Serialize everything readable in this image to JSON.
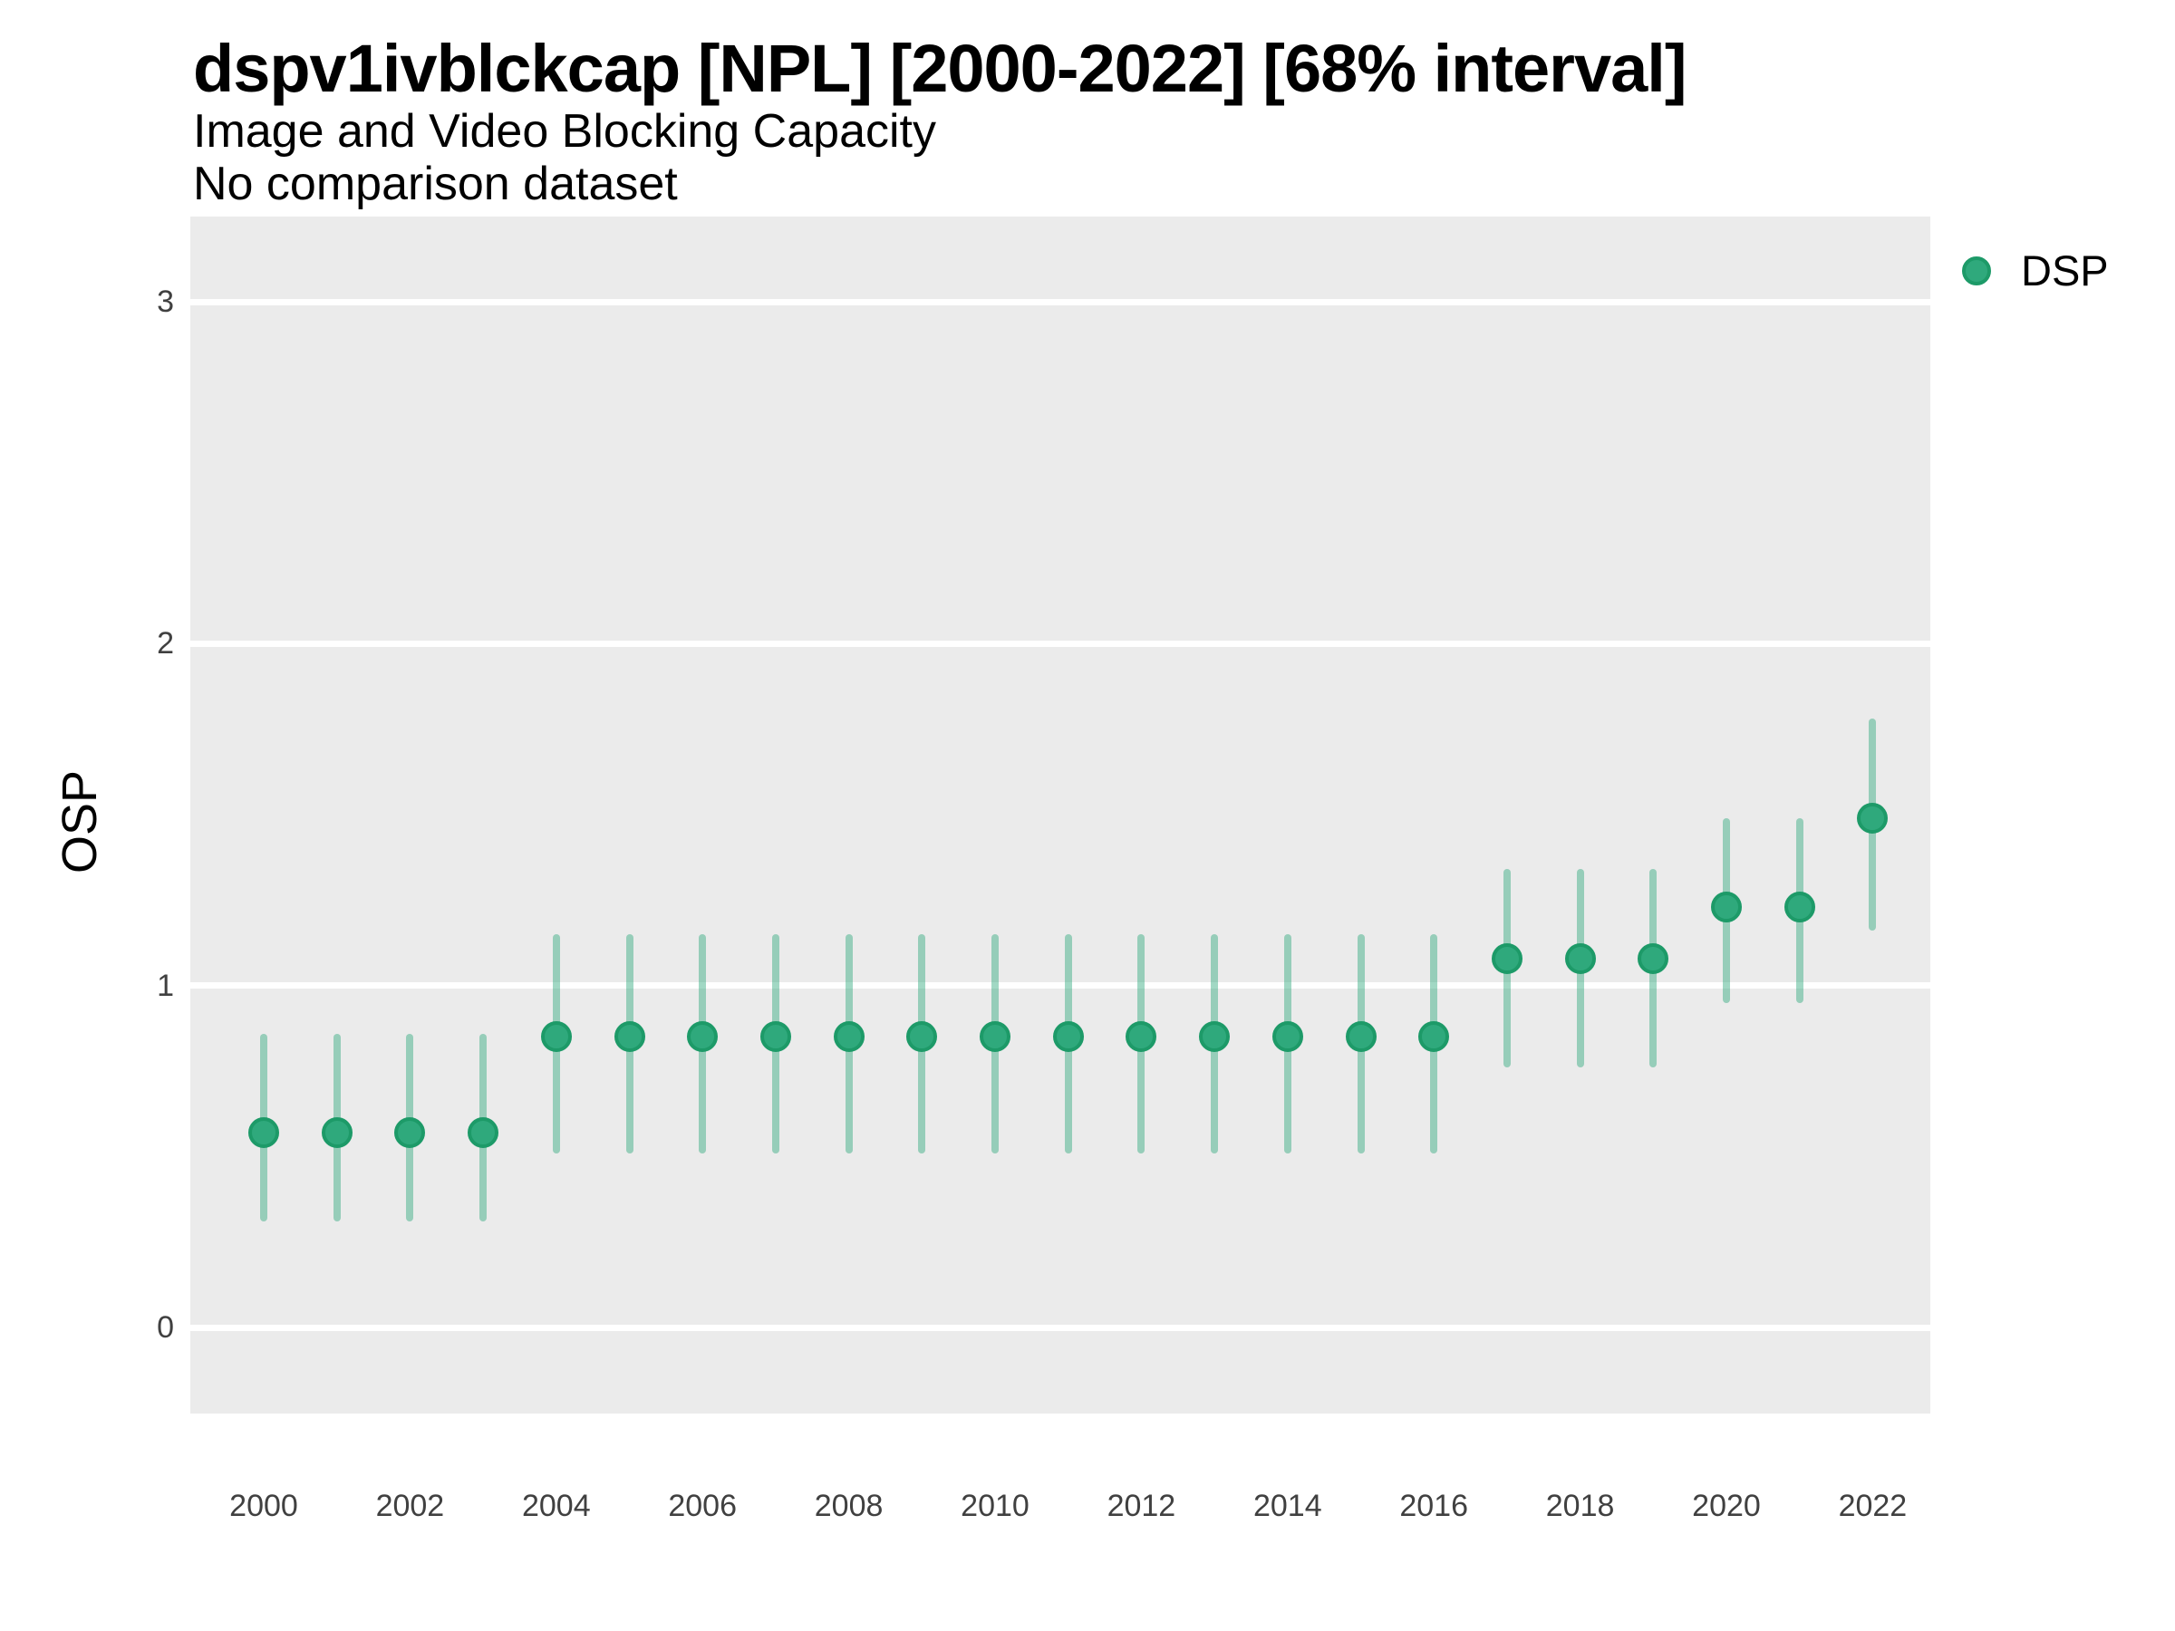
{
  "header": {
    "title": "dspv1ivblckcap [NPL] [2000-2022] [68% interval]",
    "subtitle1": "Image and Video Blocking Capacity",
    "subtitle2": "No comparison dataset"
  },
  "legend": {
    "items": [
      {
        "label": "DSP",
        "color": "#2fa97c"
      }
    ]
  },
  "colors": {
    "point_fill": "#2fa97c",
    "point_stroke": "#1d9a68",
    "interval_bar": "rgba(47,169,124,0.45)",
    "panel_background": "#ebebeb",
    "gridline": "#ffffff",
    "axis_text": "#404040",
    "title_text": "#000000"
  },
  "chart_data": {
    "type": "scatter",
    "title": "dspv1ivblckcap [NPL] [2000-2022] [68% interval]",
    "subtitle": "Image and Video Blocking Capacity",
    "note": "No comparison dataset",
    "interval_level": "68%",
    "xlabel": "",
    "ylabel": "OSP",
    "grid": true,
    "legend_position": "right",
    "legend_entries": [
      "DSP"
    ],
    "y_ticks": [
      0,
      1,
      2,
      3
    ],
    "ylim": [
      -0.25,
      3.25
    ],
    "x_tick_labels": [
      2000,
      2002,
      2004,
      2006,
      2008,
      2010,
      2012,
      2014,
      2016,
      2018,
      2020,
      2022
    ],
    "series": [
      {
        "name": "DSP",
        "x": [
          2000,
          2001,
          2002,
          2003,
          2004,
          2005,
          2006,
          2007,
          2008,
          2009,
          2010,
          2011,
          2012,
          2013,
          2014,
          2015,
          2016,
          2017,
          2018,
          2019,
          2020,
          2021,
          2022
        ],
        "estimate": [
          0.57,
          0.57,
          0.57,
          0.57,
          0.85,
          0.85,
          0.85,
          0.85,
          0.85,
          0.85,
          0.85,
          0.85,
          0.85,
          0.85,
          0.85,
          0.85,
          0.85,
          1.08,
          1.08,
          1.08,
          1.23,
          1.23,
          1.49
        ],
        "lower": [
          0.31,
          0.31,
          0.31,
          0.31,
          0.51,
          0.51,
          0.51,
          0.51,
          0.51,
          0.51,
          0.51,
          0.51,
          0.51,
          0.51,
          0.51,
          0.51,
          0.51,
          0.76,
          0.76,
          0.76,
          0.95,
          0.95,
          1.16
        ],
        "upper": [
          0.86,
          0.86,
          0.86,
          0.86,
          1.15,
          1.15,
          1.15,
          1.15,
          1.15,
          1.15,
          1.15,
          1.15,
          1.15,
          1.15,
          1.15,
          1.15,
          1.15,
          1.34,
          1.34,
          1.34,
          1.49,
          1.49,
          1.78
        ]
      }
    ]
  }
}
